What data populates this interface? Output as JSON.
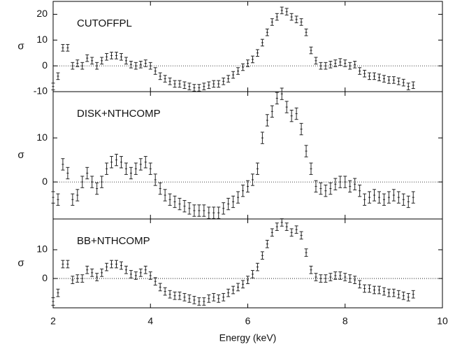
{
  "chart_data": [
    {
      "type": "scatter",
      "label": "CUTOFFPL",
      "ylabel": "σ",
      "x": [
        2.0,
        2.1,
        2.2,
        2.3,
        2.4,
        2.5,
        2.6,
        2.7,
        2.8,
        2.9,
        3.0,
        3.1,
        3.2,
        3.3,
        3.4,
        3.5,
        3.6,
        3.7,
        3.8,
        3.9,
        4.0,
        4.1,
        4.2,
        4.3,
        4.4,
        4.5,
        4.6,
        4.7,
        4.8,
        4.9,
        5.0,
        5.1,
        5.2,
        5.3,
        5.4,
        5.5,
        5.6,
        5.7,
        5.8,
        5.9,
        6.0,
        6.1,
        6.2,
        6.3,
        6.4,
        6.5,
        6.6,
        6.7,
        6.8,
        6.9,
        7.0,
        7.1,
        7.2,
        7.3,
        7.4,
        7.5,
        7.6,
        7.7,
        7.8,
        7.9,
        8.0,
        8.1,
        8.2,
        8.3,
        8.4,
        8.5,
        8.6,
        8.7,
        8.8,
        8.9,
        9.0,
        9.1,
        9.2,
        9.3,
        9.4
      ],
      "series": [
        {
          "color": "#222222",
          "error": 1.3,
          "values": [
            -8,
            -4,
            7,
            7,
            0,
            1,
            0,
            3,
            2,
            0,
            2,
            3.5,
            4,
            4,
            3.5,
            2,
            0.5,
            0,
            0.5,
            1,
            0,
            -2,
            -4,
            -5,
            -6,
            -7,
            -7,
            -7.5,
            -8,
            -8.5,
            -8.5,
            -8,
            -7.5,
            -7,
            -7,
            -6,
            -5,
            -3.5,
            -2,
            -0.5,
            1,
            2.5,
            5,
            9,
            13,
            17,
            19,
            21.5,
            21,
            19,
            18,
            17,
            13,
            6,
            2,
            0,
            0,
            0.5,
            1,
            1.5,
            1,
            0,
            0.5,
            -2,
            -3,
            -4,
            -4,
            -4.5,
            -5,
            -5.5,
            -5.5,
            -6,
            -6.5,
            -8,
            -7.5
          ]
        }
      ],
      "xlim": [
        2,
        10
      ],
      "xticks": [
        2,
        4,
        6,
        8,
        10
      ],
      "ylim": [
        -10,
        25
      ],
      "yticks": [
        -10,
        0,
        10,
        20
      ]
    },
    {
      "type": "scatter",
      "label": "DISK+NTHCOMP",
      "ylabel": "σ",
      "x": [
        2.0,
        2.1,
        2.2,
        2.3,
        2.4,
        2.5,
        2.6,
        2.7,
        2.8,
        2.9,
        3.0,
        3.1,
        3.2,
        3.3,
        3.4,
        3.5,
        3.6,
        3.7,
        3.8,
        3.9,
        4.0,
        4.1,
        4.2,
        4.3,
        4.4,
        4.5,
        4.6,
        4.7,
        4.8,
        4.9,
        5.0,
        5.1,
        5.2,
        5.3,
        5.4,
        5.5,
        5.6,
        5.7,
        5.8,
        5.9,
        6.0,
        6.1,
        6.2,
        6.3,
        6.4,
        6.5,
        6.6,
        6.7,
        6.8,
        6.9,
        7.0,
        7.1,
        7.2,
        7.3,
        7.4,
        7.5,
        7.6,
        7.7,
        7.8,
        7.9,
        8.0,
        8.1,
        8.2,
        8.3,
        8.4,
        8.5,
        8.6,
        8.7,
        8.8,
        8.9,
        9.0,
        9.1,
        9.2,
        9.3,
        9.4
      ],
      "series": [
        {
          "color": "#222222",
          "error": 1.3,
          "values": [
            -3.5,
            -4,
            4,
            2,
            -4,
            -3,
            0,
            2,
            0,
            -1.5,
            0,
            3,
            4.5,
            5,
            4.5,
            3,
            2,
            3,
            4,
            4.5,
            3,
            0.5,
            -1.5,
            -3,
            -4,
            -4.5,
            -5,
            -5.5,
            -6,
            -6.5,
            -6.5,
            -6.5,
            -7,
            -7,
            -7,
            -6,
            -5,
            -4.5,
            -3.5,
            -2,
            -1,
            0.5,
            3,
            10,
            14,
            16,
            19,
            20,
            17,
            15,
            15.5,
            12,
            7,
            3,
            -1,
            -1.5,
            -2,
            -1.5,
            -0.5,
            0,
            0,
            -1,
            -0.5,
            -2,
            -4,
            -3.5,
            -3,
            -3.5,
            -4,
            -3.5,
            -3,
            -3.5,
            -4,
            -4.5,
            -3.5
          ]
        }
      ],
      "xlim": [
        2,
        10
      ],
      "xticks": [
        2,
        4,
        6,
        8,
        10
      ],
      "ylim": [
        -8.4,
        20.5
      ],
      "yticks": [
        0,
        10
      ]
    },
    {
      "type": "scatter",
      "label": "BB+NTHCOMP",
      "ylabel": "σ",
      "xlabel": "Energy (keV)",
      "x": [
        2.0,
        2.1,
        2.2,
        2.3,
        2.4,
        2.5,
        2.6,
        2.7,
        2.8,
        2.9,
        3.0,
        3.1,
        3.2,
        3.3,
        3.4,
        3.5,
        3.6,
        3.7,
        3.8,
        3.9,
        4.0,
        4.1,
        4.2,
        4.3,
        4.4,
        4.5,
        4.6,
        4.7,
        4.8,
        4.9,
        5.0,
        5.1,
        5.2,
        5.3,
        5.4,
        5.5,
        5.6,
        5.7,
        5.8,
        5.9,
        6.0,
        6.1,
        6.2,
        6.3,
        6.4,
        6.5,
        6.6,
        6.7,
        6.8,
        6.9,
        7.0,
        7.1,
        7.2,
        7.3,
        7.4,
        7.5,
        7.6,
        7.7,
        7.8,
        7.9,
        8.0,
        8.1,
        8.2,
        8.3,
        8.4,
        8.5,
        8.6,
        8.7,
        8.8,
        8.9,
        9.0,
        9.1,
        9.2,
        9.3,
        9.4
      ],
      "series": [
        {
          "color": "#222222",
          "error": 1.3,
          "values": [
            -8,
            -5,
            5,
            5,
            -0.5,
            0,
            0,
            3,
            2,
            0.5,
            2,
            4,
            5,
            5,
            4.5,
            3,
            1.5,
            1,
            2,
            3,
            1,
            -1,
            -3,
            -4.5,
            -5.5,
            -6,
            -6,
            -6.5,
            -7,
            -7.5,
            -8,
            -8,
            -7,
            -6.5,
            -7,
            -6.5,
            -5,
            -4,
            -3,
            -2,
            -0.5,
            1.5,
            4,
            8,
            12,
            16,
            18,
            19.5,
            18,
            16,
            17,
            15,
            9,
            3,
            0.5,
            0,
            0,
            0.5,
            1,
            1,
            0.5,
            0,
            -0.5,
            -2,
            -3.5,
            -3.5,
            -4,
            -4,
            -4.5,
            -5,
            -5,
            -5.5,
            -6,
            -6.5,
            -5.5
          ]
        }
      ],
      "xlim": [
        2,
        10
      ],
      "xticks": [
        2,
        4,
        6,
        8,
        10
      ],
      "ylim": [
        -10.2,
        20.7
      ],
      "yticks": [
        0,
        10
      ]
    }
  ]
}
